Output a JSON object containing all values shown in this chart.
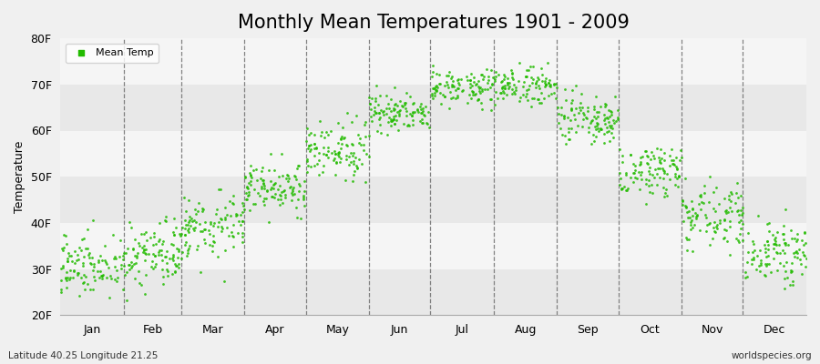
{
  "title": "Monthly Mean Temperatures 1901 - 2009",
  "ylabel": "Temperature",
  "xlabel_months": [
    "Jan",
    "Feb",
    "Mar",
    "Apr",
    "May",
    "Jun",
    "Jul",
    "Aug",
    "Sep",
    "Oct",
    "Nov",
    "Dec"
  ],
  "ytick_labels": [
    "20F",
    "30F",
    "40F",
    "50F",
    "60F",
    "70F",
    "80F"
  ],
  "ytick_values": [
    20,
    30,
    40,
    50,
    60,
    70,
    80
  ],
  "ylim": [
    20,
    80
  ],
  "background_color": "#f0f0f0",
  "plot_bg_color": "#f0f0f0",
  "band_colors": [
    "#e8e8e8",
    "#f5f5f5"
  ],
  "point_color": "#22bb00",
  "legend_label": "Mean Temp",
  "bottom_left_text": "Latitude 40.25 Longitude 21.25",
  "bottom_right_text": "worldspecies.org",
  "title_fontsize": 15,
  "axis_label_fontsize": 9,
  "tick_fontsize": 9,
  "mean_temps_f": [
    31.0,
    33.0,
    39.5,
    47.5,
    55.5,
    64.0,
    69.5,
    69.5,
    62.0,
    51.5,
    42.0,
    33.5
  ],
  "std_temps_f": [
    3.5,
    3.8,
    3.5,
    2.8,
    2.8,
    2.2,
    1.8,
    2.2,
    2.8,
    2.8,
    3.2,
    3.2
  ],
  "years": 109,
  "seed": 42,
  "days_per_month": [
    31,
    28,
    31,
    30,
    31,
    30,
    31,
    31,
    30,
    31,
    30,
    31
  ],
  "total_days": 365
}
